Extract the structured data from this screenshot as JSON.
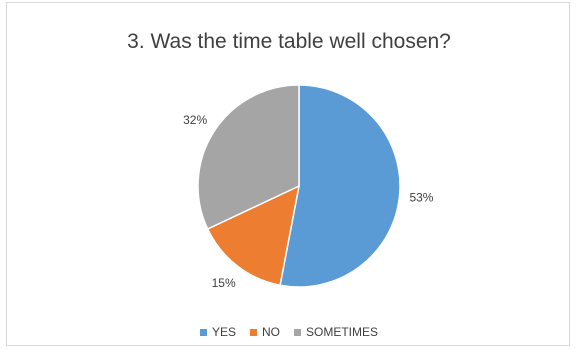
{
  "chart_data": {
    "type": "pie",
    "title": "3. Was the time table well chosen?",
    "categories": [
      "YES",
      "NO",
      "SOMETIMES"
    ],
    "values": [
      53,
      15,
      32
    ],
    "labels": [
      "53%",
      "15%",
      "32%"
    ],
    "colors": [
      "#5b9bd5",
      "#ed7d31",
      "#a5a5a5"
    ],
    "legend_position": "bottom"
  }
}
